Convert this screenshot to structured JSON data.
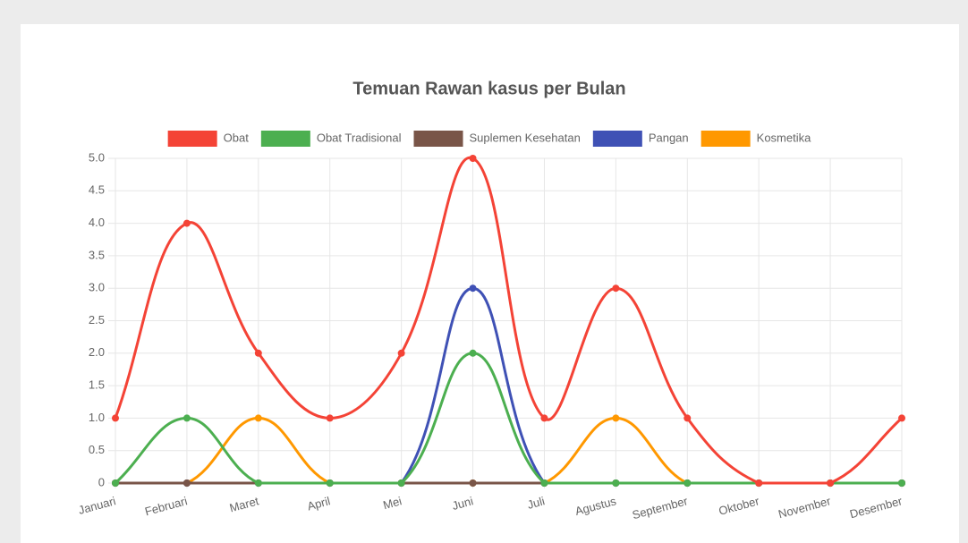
{
  "chart_data": {
    "type": "line",
    "title": "Temuan Rawan kasus per Bulan",
    "categories": [
      "Januari",
      "Februari",
      "Maret",
      "April",
      "Mei",
      "Juni",
      "Juli",
      "Agustus",
      "September",
      "Oktober",
      "November",
      "Desember"
    ],
    "series": [
      {
        "name": "Obat",
        "color": "#f44336",
        "values": [
          1,
          4,
          2,
          1,
          2,
          5,
          1,
          3,
          1,
          0,
          0,
          1
        ]
      },
      {
        "name": "Obat Tradisional",
        "color": "#4caf50",
        "values": [
          0,
          1,
          0,
          0,
          0,
          2,
          0,
          0,
          0,
          0,
          0,
          0
        ]
      },
      {
        "name": "Suplemen Kesehatan",
        "color": "#795548",
        "values": [
          0,
          0,
          0,
          0,
          0,
          0,
          0,
          0,
          0,
          0,
          0,
          0
        ]
      },
      {
        "name": "Pangan",
        "color": "#3f51b5",
        "values": [
          0,
          0,
          0,
          0,
          0,
          3,
          0,
          0,
          0,
          0,
          0,
          0
        ]
      },
      {
        "name": "Kosmetika",
        "color": "#ff9800",
        "values": [
          0,
          0,
          1,
          0,
          0,
          0,
          0,
          1,
          0,
          0,
          0,
          0
        ]
      }
    ],
    "ylim": [
      0,
      5
    ],
    "yticks": [
      0,
      0.5,
      {
        "value": 1,
        "label": "1.0"
      },
      1.5,
      {
        "value": 2,
        "label": "2.0"
      },
      2.5,
      {
        "value": 3,
        "label": "3.0"
      },
      3.5,
      {
        "value": 4,
        "label": "4.0"
      },
      4.5,
      {
        "value": 5,
        "label": "5.0"
      }
    ],
    "grid": true,
    "legend": "top"
  }
}
